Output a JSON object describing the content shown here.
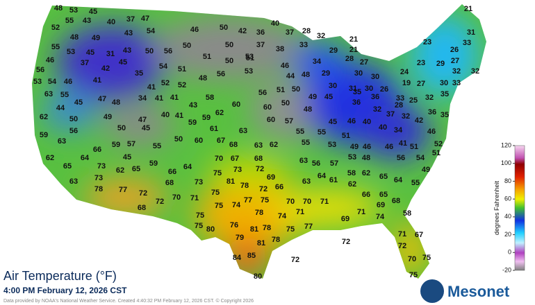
{
  "title": "Air Temperature (°F)",
  "timestamp": "4:00 PM February 12, 2026 CST",
  "credit": "Data provided by NOAA's National Weather Service. Created 4:40:32 PM February 12, 2026 CST. © Copyright 2026",
  "logo": "Mesonet",
  "colorbar": {
    "label": "degrees Fahrenheit",
    "ticks": [
      120,
      100,
      80,
      60,
      40,
      20,
      0,
      -20
    ]
  },
  "stations": [
    48,
    53,
    45,
    40,
    37,
    47,
    21,
    55,
    43,
    54,
    46,
    50,
    42,
    36,
    40,
    37,
    28,
    32,
    21,
    52,
    48,
    49,
    43,
    23,
    31,
    55,
    53,
    45,
    31,
    43,
    50,
    56,
    50,
    51,
    50,
    53,
    37,
    38,
    33,
    29,
    21,
    26,
    33,
    46,
    37,
    42,
    45,
    54,
    51,
    50,
    51,
    46,
    34,
    28,
    27,
    23,
    29,
    27,
    56,
    35,
    48,
    56,
    53,
    44,
    48,
    29,
    30,
    30,
    24,
    32,
    32,
    53,
    54,
    46,
    41,
    41,
    52,
    52,
    30,
    31,
    30,
    26,
    19,
    27,
    30,
    33,
    63,
    55,
    47,
    48,
    34,
    41,
    41,
    58,
    56,
    51,
    50,
    49,
    45,
    35,
    36,
    33,
    32,
    35,
    44,
    45,
    43,
    60,
    60,
    50,
    48,
    36,
    32,
    28,
    25,
    36,
    35,
    62,
    50,
    49,
    47,
    40,
    41,
    59,
    59,
    62,
    60,
    57,
    45,
    46,
    40,
    37,
    32,
    42,
    59,
    56,
    50,
    45,
    61,
    63,
    55,
    55,
    51,
    40,
    34,
    46,
    63,
    60,
    67,
    68,
    63,
    62,
    55,
    59,
    57,
    55,
    50,
    53,
    49,
    46,
    46,
    41,
    51,
    52,
    66,
    45,
    62,
    64,
    70,
    67,
    68,
    63,
    56,
    57,
    53,
    48,
    56,
    54,
    51,
    65,
    73,
    62,
    65,
    59,
    66,
    64,
    75,
    73,
    72,
    64,
    61,
    58,
    62,
    65,
    64,
    49,
    63,
    73,
    68,
    73,
    81,
    78,
    69,
    66,
    63,
    62,
    55,
    78,
    77,
    72,
    72,
    66,
    65,
    70,
    71,
    75,
    77,
    75,
    70,
    70,
    71,
    69,
    68,
    68,
    72,
    75,
    75,
    74,
    78,
    71,
    71,
    74,
    58,
    75,
    80,
    76,
    81,
    78,
    74,
    75,
    77,
    69,
    79,
    78,
    72,
    71,
    67,
    81,
    72,
    84,
    85,
    72,
    70,
    75,
    80,
    75
  ]
}
